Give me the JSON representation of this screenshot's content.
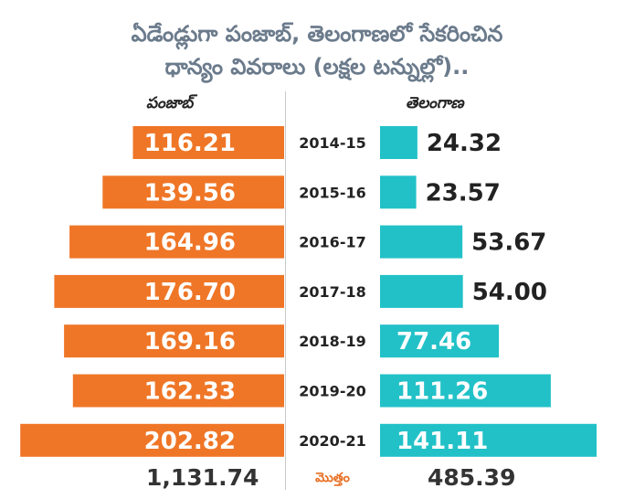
{
  "title_line1": "ఏడేండ్లుగా పంజాబ్, తెలంగాణలో సేకరించిన",
  "title_line2": "ధాన్యం వివరాలు (లక్షల టన్నుల్లో)..",
  "colors": {
    "punjab": "#ef7627",
    "telangana": "#22c1c8",
    "title": "#6b7b8c",
    "total_label": "#e86f22"
  },
  "chart_data": {
    "type": "bar",
    "layout": "back-to-back horizontal bars",
    "categories": [
      "2014-15",
      "2015-16",
      "2016-17",
      "2017-18",
      "2018-19",
      "2019-20",
      "2020-21"
    ],
    "series": [
      {
        "name": "పంజాబ్",
        "values": [
          116.21,
          139.56,
          164.96,
          176.7,
          169.16,
          162.33,
          202.82
        ],
        "labels": [
          "116.21",
          "139.56",
          "164.96",
          "176.70",
          "169.16",
          "162.33",
          "202.82"
        ]
      },
      {
        "name": "తెలంగాణ",
        "values": [
          24.32,
          23.57,
          53.67,
          54.0,
          77.46,
          111.26,
          141.11
        ],
        "labels": [
          "24.32",
          "23.57",
          "53.67",
          "54.00",
          "77.46",
          "111.26",
          "141.11"
        ]
      }
    ],
    "totals": {
      "label": "మొత్తం",
      "punjab": "1,131.74",
      "telangana": "485.39"
    }
  }
}
